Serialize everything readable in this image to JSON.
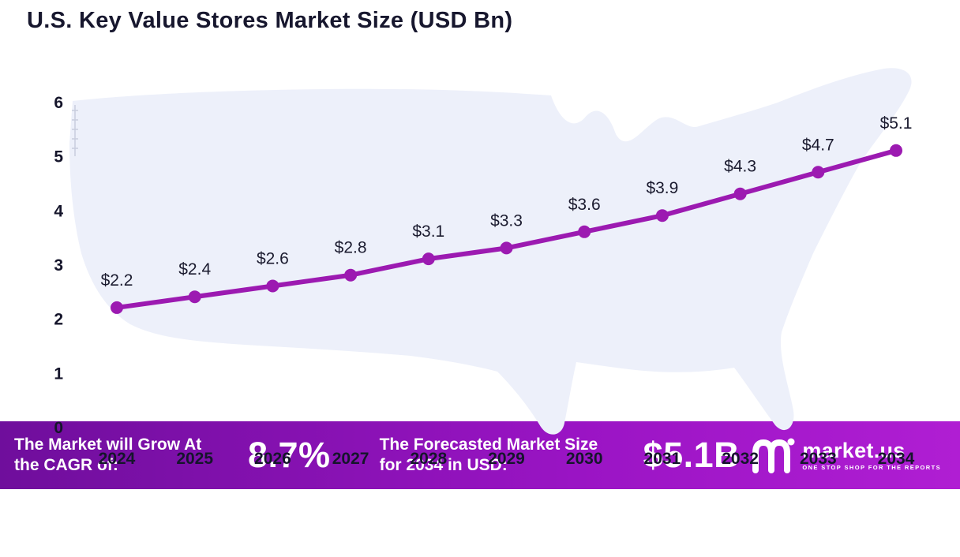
{
  "title": "U.S. Key Value Stores Market Size (USD Bn)",
  "chart_data": {
    "type": "line",
    "title": "U.S. Key Value Stores Market Size (USD Bn)",
    "x": [
      2024,
      2025,
      2026,
      2027,
      2028,
      2029,
      2030,
      2031,
      2032,
      2033,
      2034
    ],
    "series": [
      {
        "name": "U.S. Key Value Stores Market Size (USD Bn)",
        "values": [
          2.2,
          2.4,
          2.6,
          2.8,
          3.1,
          3.3,
          3.6,
          3.9,
          4.3,
          4.7,
          5.1
        ]
      }
    ],
    "point_labels": [
      "$2.2",
      "$2.4",
      "$2.6",
      "$2.8",
      "$3.1",
      "$3.3",
      "$3.6",
      "$3.9",
      "$4.3",
      "$4.7",
      "$5.1"
    ],
    "y_ticks": [
      0,
      1,
      2,
      3,
      4,
      5,
      6
    ],
    "ylim": [
      0,
      6
    ],
    "xlabel": "",
    "ylabel": "",
    "grid": false,
    "legend_position": "none",
    "line_color": "#9c1ab1",
    "marker_color": "#9c1ab1",
    "label_color": "#1b1b2f",
    "map_fill": "#edf0fa",
    "background": "#ffffff"
  },
  "banner": {
    "cagr_label": "The Market will Grow At the CAGR of:",
    "cagr_value": "8.7%",
    "forecast_label": "The Forecasted Market Size for 2034 in USD:",
    "forecast_value": "$5.1B",
    "logo_text": "market.us",
    "logo_tagline": "ONE STOP SHOP FOR THE REPORTS",
    "gradient_start": "#6f0e9c",
    "gradient_mid": "#9a14c4",
    "gradient_end": "#b01ed3"
  }
}
